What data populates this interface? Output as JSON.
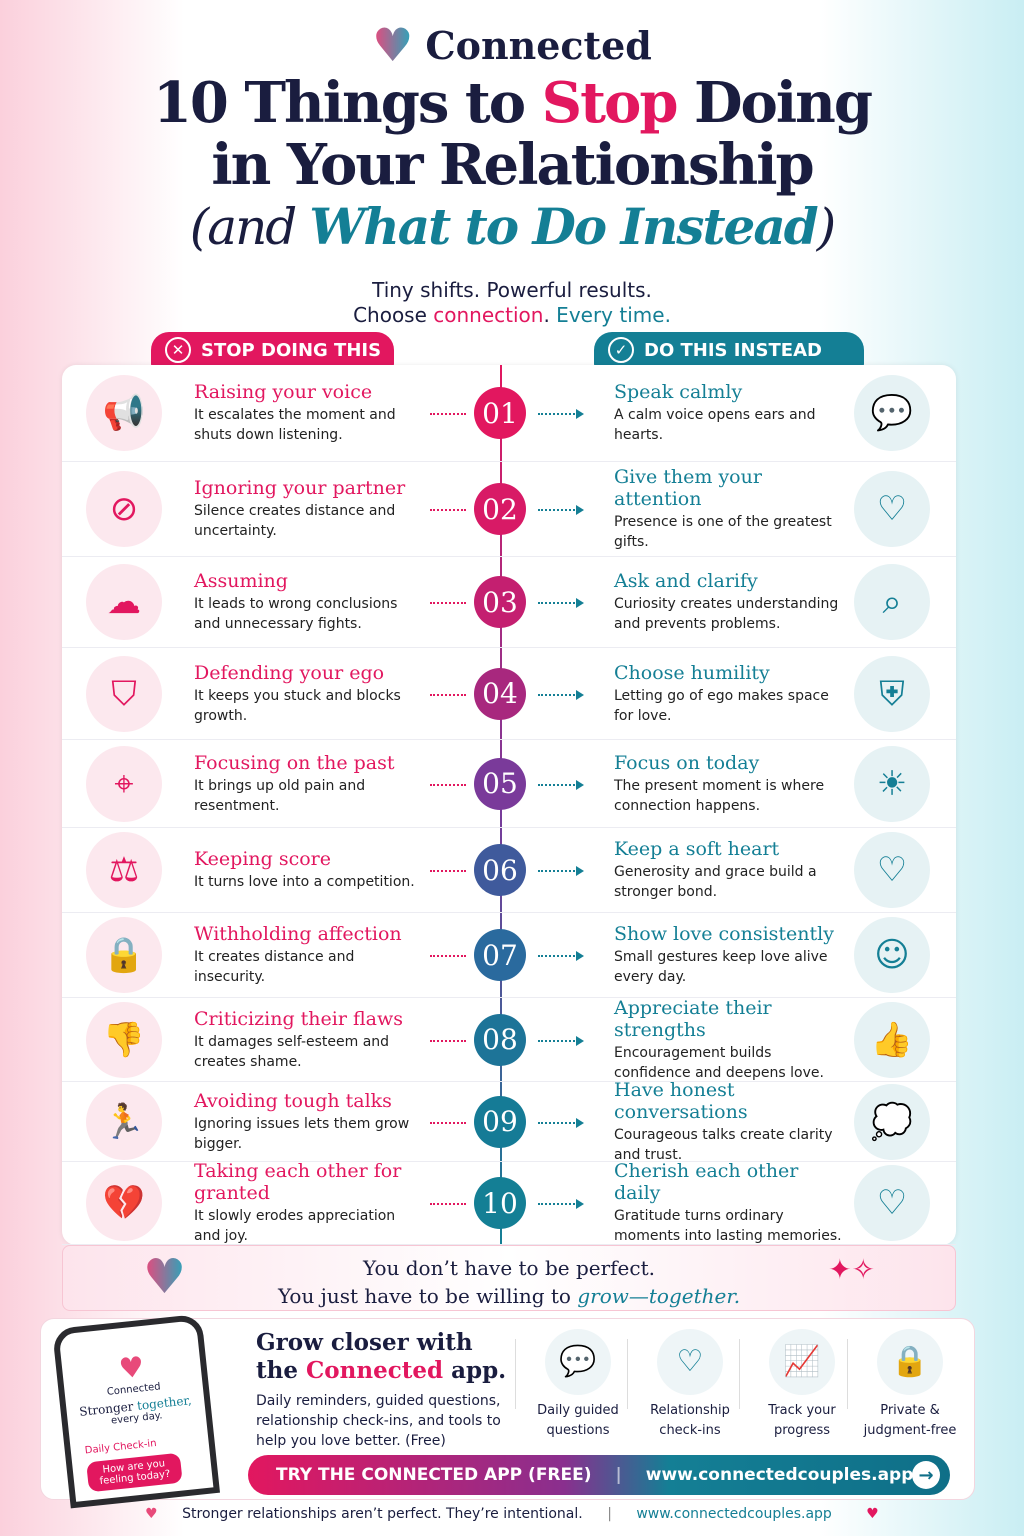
{
  "brand": {
    "name": "Connected"
  },
  "title": {
    "line1a": "10 Things to ",
    "line1b": "Stop",
    "line1c": " Doing",
    "line2": "in Your Relationship",
    "line3a": "(and ",
    "line3b": "What to Do Instead",
    "line3c": ")"
  },
  "subtitle": {
    "line1": "Tiny shifts. Powerful results.",
    "line2a": "Choose ",
    "line2b": "connection",
    "line2c": ".",
    "line2d": " Every time."
  },
  "headers": {
    "stop": "STOP DOING THIS",
    "do": "DO THIS INSTEAD"
  },
  "colors": {
    "pink": "#e2175f",
    "teal": "#147f95",
    "navy": "#1a1d3f",
    "purple": "#7a3a9a"
  },
  "items": [
    {
      "num": "01",
      "stop": "Raising your voice",
      "stop_desc": "It escalates the moment and shuts down listening.",
      "stop_icon": "megaphone-icon",
      "do": "Speak calmly",
      "do_desc": "A calm voice opens ears and hearts.",
      "do_icon": "heart-speech-icon"
    },
    {
      "num": "02",
      "stop": "Ignoring your partner",
      "stop_desc": "Silence creates distance and uncertainty.",
      "stop_icon": "eye-slash-icon",
      "do": "Give them your attention",
      "do_desc": "Presence is one of the greatest gifts.",
      "do_icon": "couple-heart-icon"
    },
    {
      "num": "03",
      "stop": "Assuming",
      "stop_desc": "It leads to wrong conclusions and unnecessary fights.",
      "stop_icon": "thought-cloud-icon",
      "do": "Ask and clarify",
      "do_desc": "Curiosity creates understanding and prevents problems.",
      "do_icon": "magnifier-icon"
    },
    {
      "num": "04",
      "stop": "Defending your ego",
      "stop_desc": "It keeps you stuck and blocks growth.",
      "stop_icon": "shield-icon",
      "do": "Choose humility",
      "do_desc": "Letting go of ego makes space for love.",
      "do_icon": "shield-heart-icon"
    },
    {
      "num": "05",
      "stop": "Focusing on the past",
      "stop_desc": "It brings up old pain and resentment.",
      "stop_icon": "target-icon",
      "do": "Focus on today",
      "do_desc": "The present moment is where connection happens.",
      "do_icon": "sunrise-icon"
    },
    {
      "num": "06",
      "stop": "Keeping score",
      "stop_desc": "It turns love into a competition.",
      "stop_icon": "scales-icon",
      "do": "Keep a soft heart",
      "do_desc": "Generosity and grace build a stronger bond.",
      "do_icon": "hands-heart-icon"
    },
    {
      "num": "07",
      "stop": "Withholding affection",
      "stop_desc": "It creates distance and insecurity.",
      "stop_icon": "lock-icon",
      "do": "Show love consistently",
      "do_desc": "Small gestures keep love alive every day.",
      "do_icon": "hug-icon"
    },
    {
      "num": "08",
      "stop": "Criticizing their flaws",
      "stop_desc": "It damages self-esteem and creates shame.",
      "stop_icon": "thumbs-down-icon",
      "do": "Appreciate their strengths",
      "do_desc": "Encouragement builds confidence and deepens love.",
      "do_icon": "thumbs-up-icon"
    },
    {
      "num": "09",
      "stop": "Avoiding tough talks",
      "stop_desc": "Ignoring issues lets them grow bigger.",
      "stop_icon": "running-icon",
      "do": "Have honest conversations",
      "do_desc": "Courageous talks create clarity and trust.",
      "do_icon": "chat-bubbles-icon"
    },
    {
      "num": "10",
      "stop": "Taking each other for granted",
      "stop_desc": "It slowly erodes appreciation and joy.",
      "stop_icon": "broken-heart-icon",
      "do": "Cherish each other daily",
      "do_desc": "Gratitude turns ordinary moments into lasting memories.",
      "do_icon": "sparkle-heart-icon"
    }
  ],
  "quote": {
    "line1": "You don’t have to be perfect.",
    "line2a": "You just have to be willing to ",
    "line2b": "grow—together."
  },
  "app": {
    "phone_brand": "Connected",
    "phone_tag_a": "Stronger ",
    "phone_tag_b": "together,",
    "phone_tag_c": "every day.",
    "phone_checkin": "Daily Check-in",
    "phone_question": "How are you feeling today?",
    "title_a": "Grow closer with",
    "title_b": "the ",
    "title_c": "Connected",
    "title_d": " app.",
    "desc": "Daily reminders, guided questions, relationship check-ins, and tools to help you love better. (Free)",
    "features": [
      {
        "label": "Daily guided questions",
        "icon": "chat-dots-icon"
      },
      {
        "label": "Relationship check-ins",
        "icon": "heart-icon"
      },
      {
        "label": "Track your progress",
        "icon": "chart-up-icon"
      },
      {
        "label": "Private & judgment-free",
        "icon": "padlock-icon"
      }
    ],
    "cta": "TRY THE CONNECTED APP (FREE)",
    "cta_url": "www.connectedcouples.app"
  },
  "footer": {
    "text": "Stronger relationships aren’t perfect. They’re intentional.",
    "url": "www.connectedcouples.app"
  }
}
